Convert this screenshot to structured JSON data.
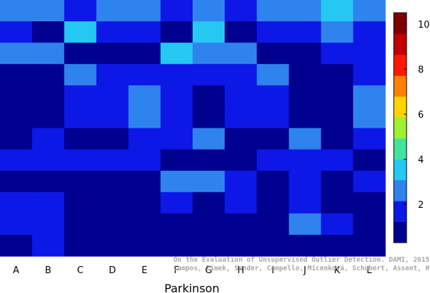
{
  "chart_data": {
    "type": "heatmap",
    "xlabel": "Parkinson",
    "ylabel": "",
    "categories": [
      "A",
      "B",
      "C",
      "D",
      "E",
      "F",
      "G",
      "H",
      "I",
      "J",
      "K",
      "L"
    ],
    "rows": 12,
    "values": [
      [
        3,
        3,
        2,
        3,
        3,
        2,
        3,
        2,
        3,
        3,
        4,
        3
      ],
      [
        2,
        1,
        4,
        2,
        2,
        1,
        4,
        1,
        2,
        2,
        3,
        2
      ],
      [
        3,
        3,
        1,
        1,
        1,
        4,
        3,
        3,
        1,
        1,
        2,
        2
      ],
      [
        1,
        1,
        3,
        2,
        2,
        2,
        2,
        2,
        3,
        1,
        1,
        2
      ],
      [
        1,
        1,
        2,
        2,
        3,
        2,
        1,
        2,
        2,
        1,
        1,
        3
      ],
      [
        1,
        1,
        2,
        2,
        3,
        2,
        1,
        2,
        2,
        1,
        1,
        3
      ],
      [
        1,
        2,
        1,
        1,
        2,
        2,
        3,
        1,
        1,
        3,
        1,
        2
      ],
      [
        2,
        2,
        2,
        2,
        2,
        1,
        1,
        1,
        2,
        2,
        2,
        1
      ],
      [
        1,
        1,
        1,
        1,
        1,
        3,
        3,
        2,
        1,
        2,
        1,
        2
      ],
      [
        2,
        2,
        1,
        1,
        1,
        2,
        1,
        2,
        1,
        2,
        1,
        1
      ],
      [
        2,
        2,
        1,
        1,
        1,
        1,
        1,
        1,
        1,
        3,
        2,
        1
      ],
      [
        1,
        2,
        1,
        1,
        1,
        1,
        1,
        1,
        1,
        1,
        1,
        1
      ]
    ],
    "colorbar": {
      "min": 0.3,
      "max": 10.5,
      "ticks": [
        2,
        4,
        6,
        8,
        10
      ],
      "colors": [
        "#00008f",
        "#0d18e7",
        "#2f83ee",
        "#24c8f0",
        "#44e39b",
        "#9ef033",
        "#ffd400",
        "#ff8000",
        "#ff1a00",
        "#c00000",
        "#800000"
      ]
    },
    "grid": false,
    "legend": "colorbar-right"
  },
  "credit": {
    "line1": "On the Evaluation of Unsupervised Outlier Detection. DAMI, 2015.",
    "line2": "Campos, Zimek, Sander, Campello, Micenková, Schubert, Assent, Houle"
  }
}
